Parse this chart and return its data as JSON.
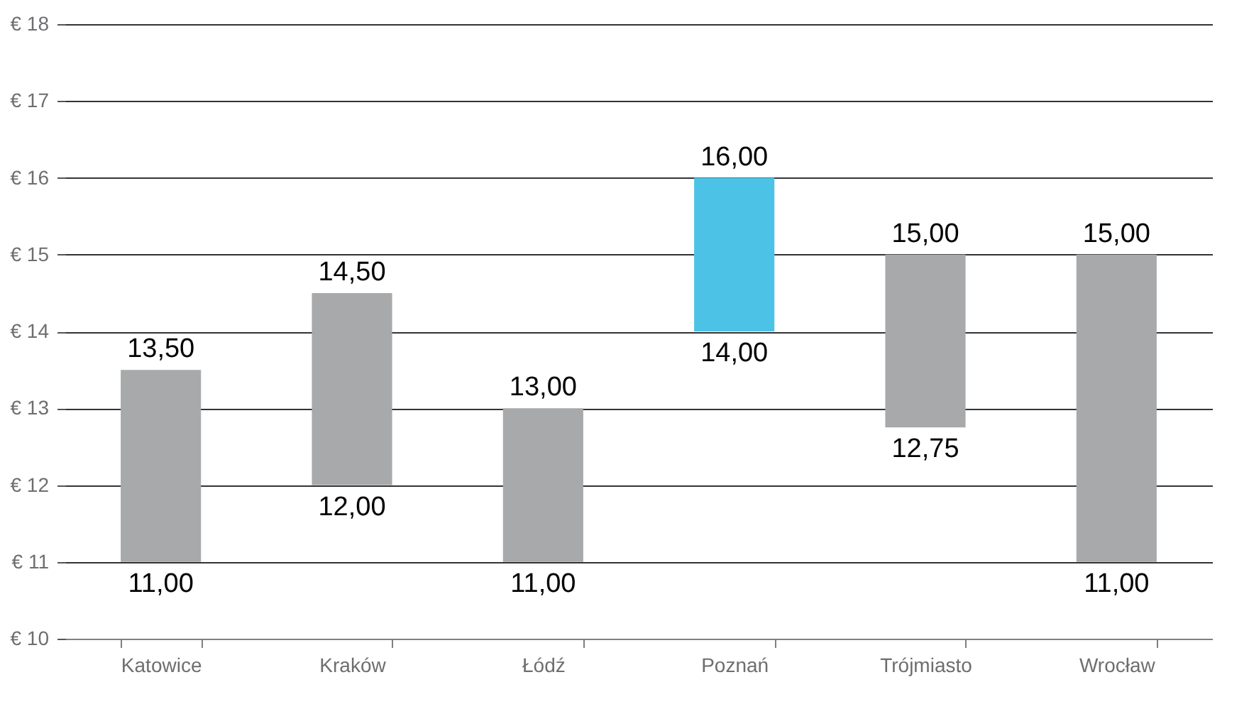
{
  "chart_data": {
    "type": "bar",
    "categories": [
      "Katowice",
      "Kraków",
      "Łódź",
      "Poznań",
      "Trójmiasto",
      "Wrocław"
    ],
    "base": [
      11,
      12,
      11,
      14,
      12.75,
      11
    ],
    "values": [
      2.5,
      2.5,
      2,
      2,
      2.25,
      4
    ],
    "colors": [
      "#a7a9ab",
      "#a7a9ab",
      "#a7a9ab",
      "#4cc3e6",
      "#a7a9ab",
      "#a7a9ab"
    ],
    "ylim": [
      10,
      18
    ],
    "yticks": [
      {
        "value": 10,
        "label": "€ 10"
      },
      {
        "value": 11,
        "label": "€ 11"
      },
      {
        "value": 12,
        "label": "€ 12"
      },
      {
        "value": 13,
        "label": "€ 13"
      },
      {
        "value": 14,
        "label": "€ 14"
      },
      {
        "value": 15,
        "label": "€ 15"
      },
      {
        "value": 16,
        "label": "€ 16"
      },
      {
        "value": 17,
        "label": "€ 17"
      },
      {
        "value": 18,
        "label": "€ 18"
      }
    ],
    "grid": "y",
    "annotations": [
      {
        "text": "13,50",
        "x": "Katowice",
        "y": 13.5
      },
      {
        "text": "11,00",
        "x": "Katowice",
        "y": 11
      },
      {
        "text": "14,50",
        "x": "Kraków",
        "y": 14.5
      },
      {
        "text": "12,00",
        "x": "Kraków",
        "y": 12
      },
      {
        "text": "13,00",
        "x": "Łódź",
        "y": 13
      },
      {
        "text": "11,00",
        "x": "Łódź",
        "y": 11
      },
      {
        "text": "16,00",
        "x": "Poznań",
        "y": 16
      },
      {
        "text": "14,00",
        "x": "Poznań",
        "y": 14
      },
      {
        "text": "15,00",
        "x": "Trójmiasto",
        "y": 15
      },
      {
        "text": "12,75",
        "x": "Trójmiasto",
        "y": 12.75
      },
      {
        "text": "15,00",
        "x": "Wrocław",
        "y": 15
      },
      {
        "text": "11,00",
        "x": "Wrocław",
        "y": 11
      }
    ]
  }
}
